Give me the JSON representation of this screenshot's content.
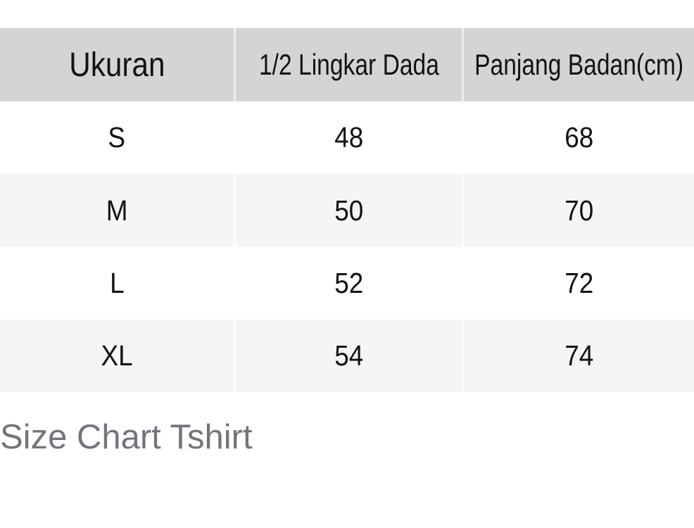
{
  "chart_data": {
    "type": "table",
    "title": "Size Chart Tshirt",
    "columns": [
      "Ukuran",
      "1/2 Lingkar Dada",
      "Panjang Badan(cm)"
    ],
    "rows": [
      [
        "S",
        "48",
        "68"
      ],
      [
        "M",
        "50",
        "70"
      ],
      [
        "L",
        "52",
        "72"
      ],
      [
        "XL",
        "54",
        "74"
      ]
    ],
    "layout_hints": {
      "header_position": "top",
      "zebra_striping": true,
      "grid": "column dividers only, light on gray rows"
    }
  },
  "caption": {
    "label": "Size Chart Tshirt"
  },
  "colors": {
    "page_background": "#ffffff",
    "header_background": "#d4d4d4",
    "zebra_row_background": "#f5f5f5",
    "table_text": "#121212",
    "caption_text": "#74747c"
  }
}
